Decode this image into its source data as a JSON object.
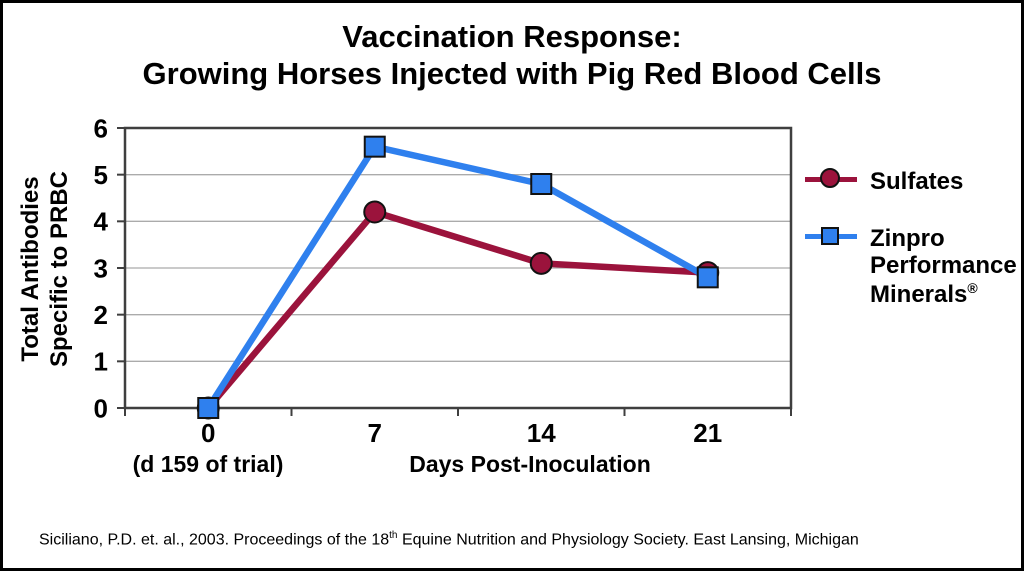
{
  "title": {
    "line1": "Vaccination Response:",
    "line2": "Growing Horses Injected with Pig Red Blood Cells"
  },
  "axes": {
    "y_title_line1": "Total Antibodies",
    "y_title_line2": "Specific to PRBC",
    "x_title": "Days Post-Inoculation",
    "x_note": "(d 159 of trial)"
  },
  "legend": {
    "sulfates": "Sulfates",
    "zinpro_line1": "Zinpro",
    "zinpro_line2": "Performance",
    "zinpro_line3": "Minerals",
    "zinpro_reg": "®"
  },
  "citation": {
    "part1": "Siciliano, P.D. et. al., 2003.  Proceedings of the 18",
    "sup": "th",
    "part2": " Equine Nutrition and Physiology Society. East Lansing, Michigan"
  },
  "colors": {
    "sulfates": "#9B133C",
    "zinpro": "#2F80EE",
    "frame": "#3F3F3F",
    "gridline": "#ABABAB",
    "marker_outline": "#121212",
    "text": "#000000"
  },
  "chart_data": {
    "type": "line",
    "title": "Vaccination Response: Growing Horses Injected with Pig Red Blood Cells",
    "xlabel": "Days Post-Inoculation",
    "ylabel": "Total Antibodies Specific to PRBC",
    "categories": [
      "0",
      "7",
      "14",
      "21"
    ],
    "yticks": [
      0,
      1,
      2,
      3,
      4,
      5,
      6
    ],
    "ylim": [
      0,
      6
    ],
    "grid": "horizontal",
    "legend_position": "right",
    "series": [
      {
        "name": "Sulfates",
        "marker": "circle",
        "color": "#9B133C",
        "values": [
          0,
          4.2,
          3.1,
          2.9
        ]
      },
      {
        "name": "Zinpro Performance Minerals®",
        "marker": "square",
        "color": "#2F80EE",
        "values": [
          0,
          5.6,
          4.8,
          2.8
        ]
      }
    ]
  }
}
